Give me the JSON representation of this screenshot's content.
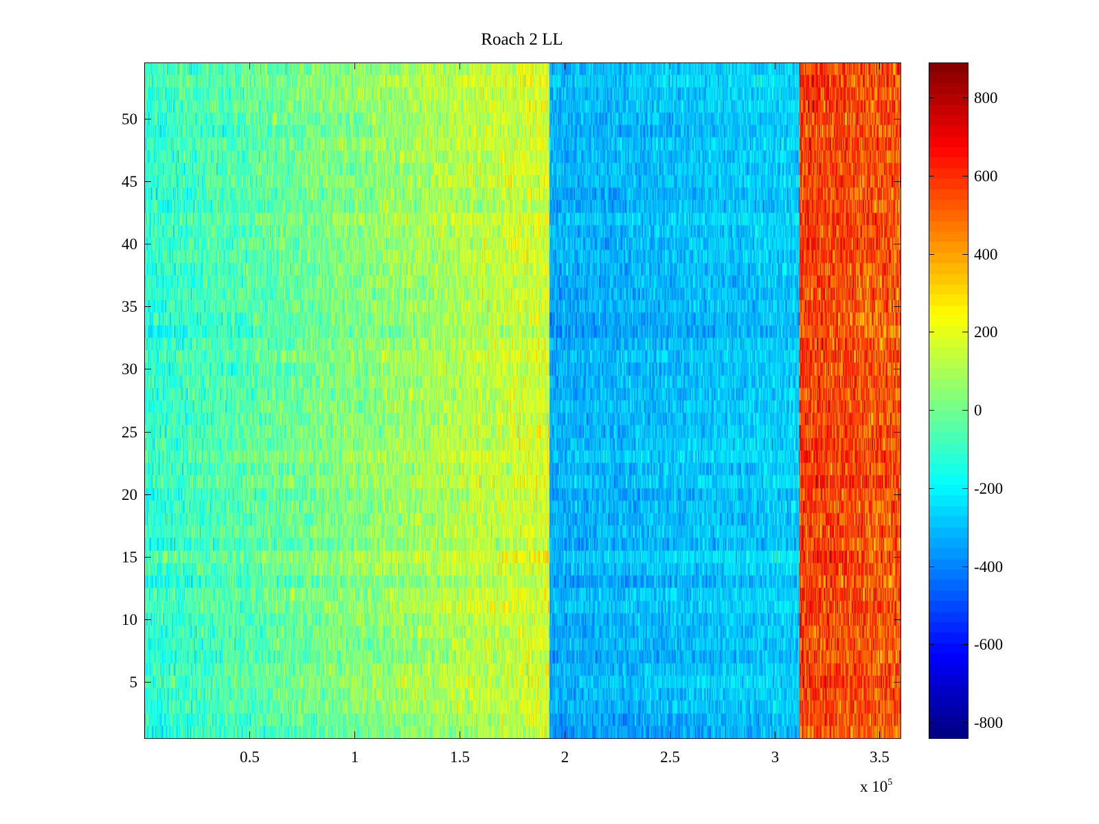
{
  "chart_data": {
    "type": "heatmap",
    "title": "Roach 2 LL",
    "xlabel": "",
    "ylabel": "",
    "x_multiplier_label": "x 10",
    "x_multiplier_exponent": "5",
    "xlim": [
      0,
      3.6
    ],
    "ylim": [
      0.5,
      54.5
    ],
    "xticks": [
      {
        "value": 0.5,
        "label": "0.5"
      },
      {
        "value": 1,
        "label": "1"
      },
      {
        "value": 1.5,
        "label": "1.5"
      },
      {
        "value": 2,
        "label": "2"
      },
      {
        "value": 2.5,
        "label": "2.5"
      },
      {
        "value": 3,
        "label": "3"
      },
      {
        "value": 3.5,
        "label": "3.5"
      }
    ],
    "yticks": [
      {
        "value": 5,
        "label": "5"
      },
      {
        "value": 10,
        "label": "10"
      },
      {
        "value": 15,
        "label": "15"
      },
      {
        "value": 20,
        "label": "20"
      },
      {
        "value": 25,
        "label": "25"
      },
      {
        "value": 30,
        "label": "30"
      },
      {
        "value": 35,
        "label": "35"
      },
      {
        "value": 40,
        "label": "40"
      },
      {
        "value": 45,
        "label": "45"
      },
      {
        "value": 50,
        "label": "50"
      }
    ],
    "rows": 54,
    "colormap": "jet",
    "clim": [
      -840,
      890
    ],
    "colorbar_ticks": [
      {
        "value": 800,
        "label": "800"
      },
      {
        "value": 600,
        "label": "600"
      },
      {
        "value": 400,
        "label": "400"
      },
      {
        "value": 200,
        "label": "200"
      },
      {
        "value": 0,
        "label": "0"
      },
      {
        "value": -200,
        "label": "-200"
      },
      {
        "value": -400,
        "label": "-400"
      },
      {
        "value": -600,
        "label": "-600"
      },
      {
        "value": -800,
        "label": "-800"
      }
    ],
    "regions": [
      {
        "x_start": 0,
        "x_end": 1.93,
        "value_start": -120,
        "value_end": 180,
        "noise": 150
      },
      {
        "x_start": 1.93,
        "x_end": 3.12,
        "value_start": -330,
        "value_end": -270,
        "noise": 120
      },
      {
        "x_start": 3.12,
        "x_end": 3.6,
        "value_start": 580,
        "value_end": 520,
        "noise": 200
      }
    ],
    "grid": false,
    "legend": "colorbar-right"
  }
}
